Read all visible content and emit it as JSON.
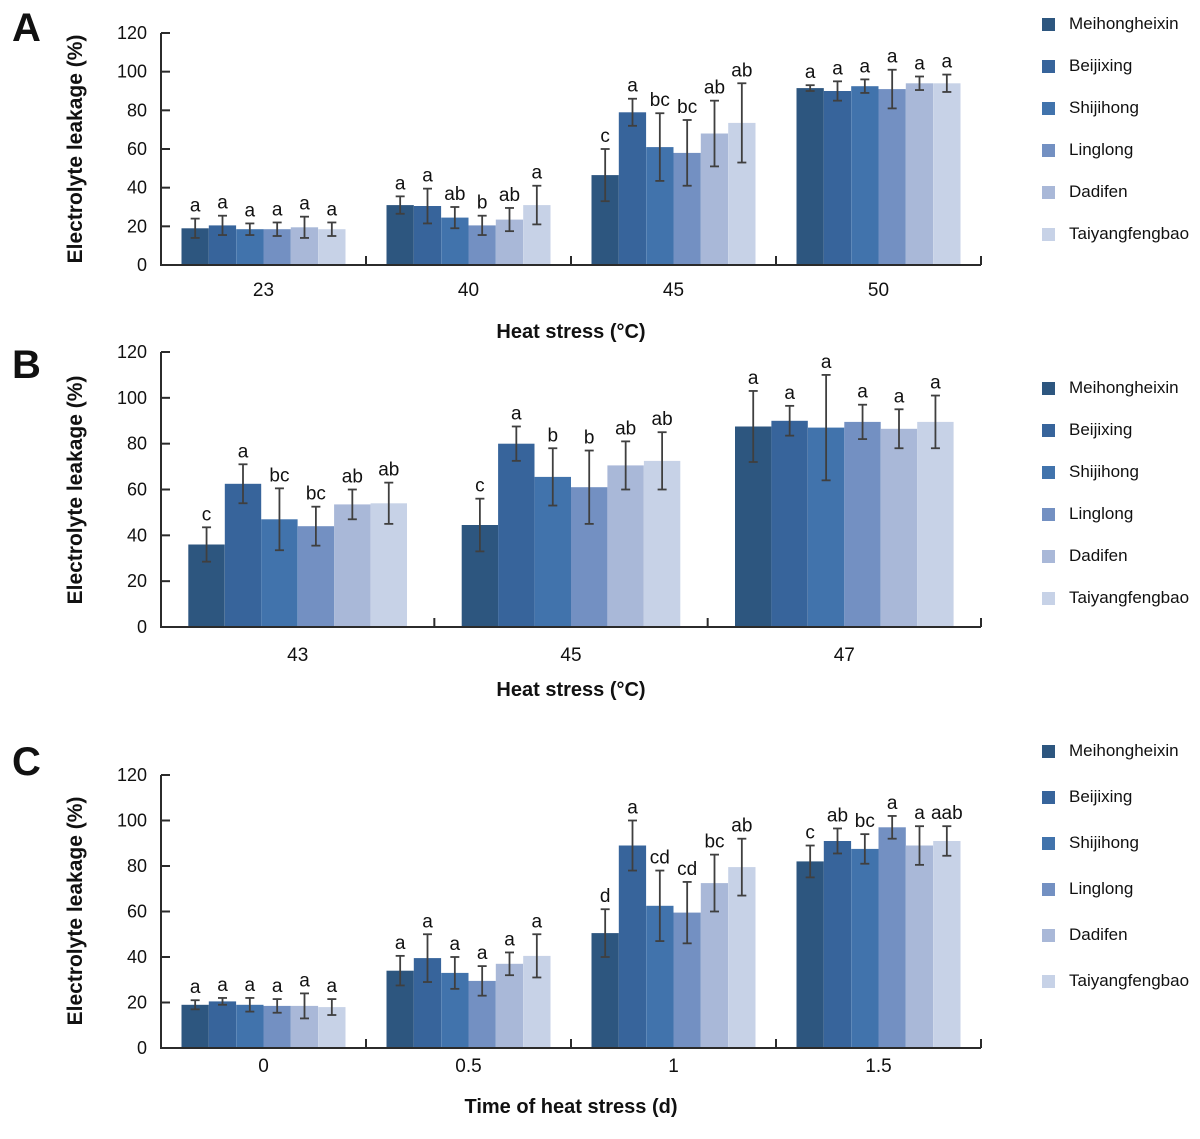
{
  "figure_title": "",
  "axis_color": "#2b2b2b",
  "error_bar_color": "#3f3f3f",
  "text_color": "#111111",
  "series": [
    {
      "name": "Meihongheixin",
      "color": "#2d567f"
    },
    {
      "name": "Beijixing",
      "color": "#37649b"
    },
    {
      "name": "Shijihong",
      "color": "#4173ac"
    },
    {
      "name": "Linglong",
      "color": "#7390c2"
    },
    {
      "name": "Dadifen",
      "color": "#a9b8d8"
    },
    {
      "name": "Taiyangfengbao",
      "color": "#c7d2e7"
    }
  ],
  "chart_data": [
    {
      "panel": "A",
      "type": "bar",
      "ylabel": "Electrolyte leakage (%)",
      "xlabel": "Heat stress (°C)",
      "ylim": [
        0,
        120
      ],
      "yticks": [
        0,
        20,
        40,
        60,
        80,
        100,
        120
      ],
      "grid": false,
      "legend_position": "right",
      "categories": [
        "23",
        "40",
        "45",
        "50"
      ],
      "series": [
        {
          "name": "Meihongheixin",
          "values": [
            19,
            31,
            46.5,
            91.5
          ],
          "errors": [
            5,
            4.5,
            13.5,
            1.5
          ],
          "sig_letters": [
            "a",
            "a",
            "c",
            "a"
          ]
        },
        {
          "name": "Beijixing",
          "values": [
            20.5,
            30.5,
            79,
            90
          ],
          "errors": [
            5,
            9,
            7,
            5
          ],
          "sig_letters": [
            "a",
            "a",
            "a",
            "a"
          ]
        },
        {
          "name": "Shijihong",
          "values": [
            18.5,
            24.5,
            61,
            92.5
          ],
          "errors": [
            3,
            5.5,
            17.5,
            3.5
          ],
          "sig_letters": [
            "a",
            "ab",
            "bc",
            "a"
          ]
        },
        {
          "name": "Linglong",
          "values": [
            18.5,
            20.5,
            58,
            91
          ],
          "errors": [
            3.5,
            5,
            17,
            10
          ],
          "sig_letters": [
            "a",
            "b",
            "bc",
            "a"
          ]
        },
        {
          "name": "Dadifen",
          "values": [
            19.5,
            23.5,
            68,
            94
          ],
          "errors": [
            5.5,
            6,
            17,
            3.5
          ],
          "sig_letters": [
            "a",
            "ab",
            "ab",
            "a"
          ]
        },
        {
          "name": "Taiyangfengbao",
          "values": [
            18.5,
            31,
            73.5,
            94
          ],
          "errors": [
            3.5,
            10,
            20.5,
            4.5
          ],
          "sig_letters": [
            "a",
            "a",
            "ab",
            "a"
          ]
        }
      ]
    },
    {
      "panel": "B",
      "type": "bar",
      "ylabel": "Electrolyte leakage (%)",
      "xlabel": "Heat stress (°C)",
      "ylim": [
        0,
        120
      ],
      "yticks": [
        0,
        20,
        40,
        60,
        80,
        100,
        120
      ],
      "grid": false,
      "legend_position": "right",
      "categories": [
        "43",
        "45",
        "47"
      ],
      "series": [
        {
          "name": "Meihongheixin",
          "values": [
            36,
            44.5,
            87.5
          ],
          "errors": [
            7.5,
            11.5,
            15.5
          ],
          "sig_letters": [
            "c",
            "c",
            "a"
          ]
        },
        {
          "name": "Beijixing",
          "values": [
            62.5,
            80,
            90
          ],
          "errors": [
            8.5,
            7.5,
            6.5
          ],
          "sig_letters": [
            "a",
            "a",
            "a"
          ]
        },
        {
          "name": "Shijihong",
          "values": [
            47,
            65.5,
            87
          ],
          "errors": [
            13.5,
            12.5,
            23
          ],
          "sig_letters": [
            "bc",
            "b",
            "a"
          ]
        },
        {
          "name": "Linglong",
          "values": [
            44,
            61,
            89.5
          ],
          "errors": [
            8.5,
            16,
            7.5
          ],
          "sig_letters": [
            "bc",
            "b",
            "a"
          ]
        },
        {
          "name": "Dadifen",
          "values": [
            53.5,
            70.5,
            86.5
          ],
          "errors": [
            6.5,
            10.5,
            8.5
          ],
          "sig_letters": [
            "ab",
            "ab",
            "a"
          ]
        },
        {
          "name": "Taiyangfengbao",
          "values": [
            54,
            72.5,
            89.5
          ],
          "errors": [
            9,
            12.5,
            11.5
          ],
          "sig_letters": [
            "ab",
            "ab",
            "a"
          ]
        }
      ]
    },
    {
      "panel": "C",
      "type": "bar",
      "ylabel": "Electrolyte leakage (%)",
      "xlabel": "Time of heat stress (d)",
      "ylim": [
        0,
        120
      ],
      "yticks": [
        0,
        20,
        40,
        60,
        80,
        100,
        120
      ],
      "grid": false,
      "legend_position": "right",
      "categories": [
        "0",
        "0.5",
        "1",
        "1.5"
      ],
      "series": [
        {
          "name": "Meihongheixin",
          "values": [
            19,
            34,
            50.5,
            82
          ],
          "errors": [
            2,
            6.5,
            10.5,
            7
          ],
          "sig_letters": [
            "a",
            "a",
            "d",
            "c"
          ]
        },
        {
          "name": "Beijixing",
          "values": [
            20.5,
            39.5,
            89,
            91
          ],
          "errors": [
            1.5,
            10.5,
            11,
            5.5
          ],
          "sig_letters": [
            "a",
            "a",
            "a",
            "ab"
          ]
        },
        {
          "name": "Shijihong",
          "values": [
            19,
            33,
            62.5,
            87.5
          ],
          "errors": [
            3,
            7,
            15.5,
            6.5
          ],
          "sig_letters": [
            "a",
            "a",
            "cd",
            "bc"
          ]
        },
        {
          "name": "Linglong",
          "values": [
            18.5,
            29.5,
            59.5,
            97
          ],
          "errors": [
            3,
            6.5,
            13.5,
            5
          ],
          "sig_letters": [
            "a",
            "a",
            "cd",
            "a"
          ]
        },
        {
          "name": "Dadifen",
          "values": [
            18.5,
            37,
            72.5,
            89
          ],
          "errors": [
            5.5,
            5,
            12.5,
            8.5
          ],
          "sig_letters": [
            "a",
            "a",
            "bc",
            "a"
          ]
        },
        {
          "name": "Taiyangfengbao",
          "values": [
            18,
            40.5,
            79.5,
            91
          ],
          "errors": [
            3.5,
            9.5,
            12.5,
            6.5
          ],
          "sig_letters": [
            "a",
            "a",
            "ab",
            "aab"
          ]
        }
      ]
    }
  ]
}
